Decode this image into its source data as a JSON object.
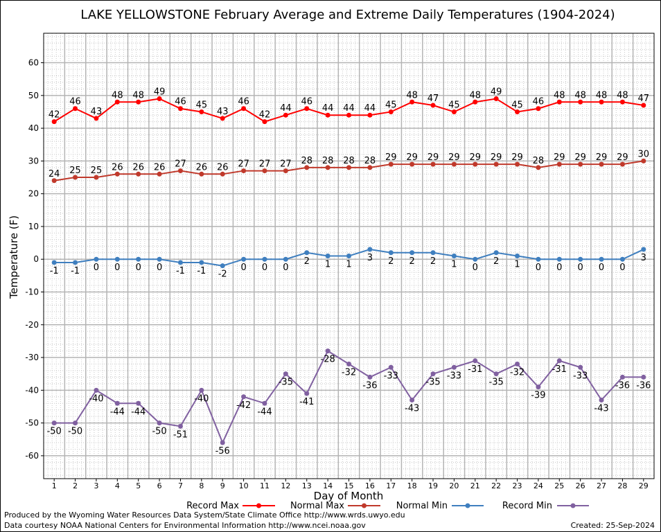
{
  "chart_data": {
    "type": "line",
    "title": "LAKE YELLOWSTONE February Average and Extreme Daily Temperatures (1904-2024)",
    "xlabel": "Day of Month",
    "ylabel": "Temperature (F)",
    "ylim": [
      -67,
      69
    ],
    "yticks": [
      -60,
      -50,
      -40,
      -30,
      -20,
      -10,
      0,
      10,
      20,
      30,
      40,
      50,
      60
    ],
    "x": [
      1,
      2,
      3,
      4,
      5,
      6,
      7,
      8,
      9,
      10,
      11,
      12,
      13,
      14,
      15,
      16,
      17,
      18,
      19,
      20,
      21,
      22,
      23,
      24,
      25,
      26,
      27,
      28,
      29
    ],
    "grid": true,
    "legend_position": "bottom",
    "series": [
      {
        "name": "Record Max",
        "color": "#ff0000",
        "label_pos": "above",
        "values": [
          42,
          46,
          43,
          48,
          48,
          49,
          46,
          45,
          43,
          46,
          42,
          44,
          46,
          44,
          44,
          44,
          45,
          48,
          47,
          45,
          48,
          49,
          45,
          46,
          48,
          48,
          48,
          48,
          47
        ]
      },
      {
        "name": "Normal Max",
        "color": "#c0392b",
        "label_pos": "above",
        "values": [
          24,
          25,
          25,
          26,
          26,
          26,
          27,
          26,
          26,
          27,
          27,
          27,
          28,
          28,
          28,
          28,
          29,
          29,
          29,
          29,
          29,
          29,
          29,
          28,
          29,
          29,
          29,
          29,
          30
        ]
      },
      {
        "name": "Normal Min",
        "color": "#3f7fbf",
        "label_pos": "below",
        "values": [
          -1,
          -1,
          0,
          0,
          0,
          0,
          -1,
          -1,
          -2,
          0,
          0,
          0,
          2,
          1,
          1,
          3,
          2,
          2,
          2,
          1,
          0,
          2,
          1,
          0,
          0,
          0,
          0,
          0,
          3
        ]
      },
      {
        "name": "Record Min",
        "color": "#8060a0",
        "label_pos": "below",
        "values": [
          -50,
          -50,
          -40,
          -44,
          -44,
          -50,
          -51,
          -40,
          -56,
          -42,
          -44,
          -35,
          -41,
          -28,
          -32,
          -36,
          -33,
          -43,
          -35,
          -33,
          -31,
          -35,
          -32,
          -39,
          -31,
          -33,
          -43,
          -36,
          -36
        ]
      }
    ]
  },
  "footer": {
    "credit_line_1": "Produced by the Wyoming Water Resources Data System/State Climate Office http://www.wrds.uwyo.edu",
    "credit_line_2": "Data courtesy NOAA National Centers for Environmental Information http://www.ncei.noaa.gov",
    "created": "Created:  25-Sep-2024"
  }
}
